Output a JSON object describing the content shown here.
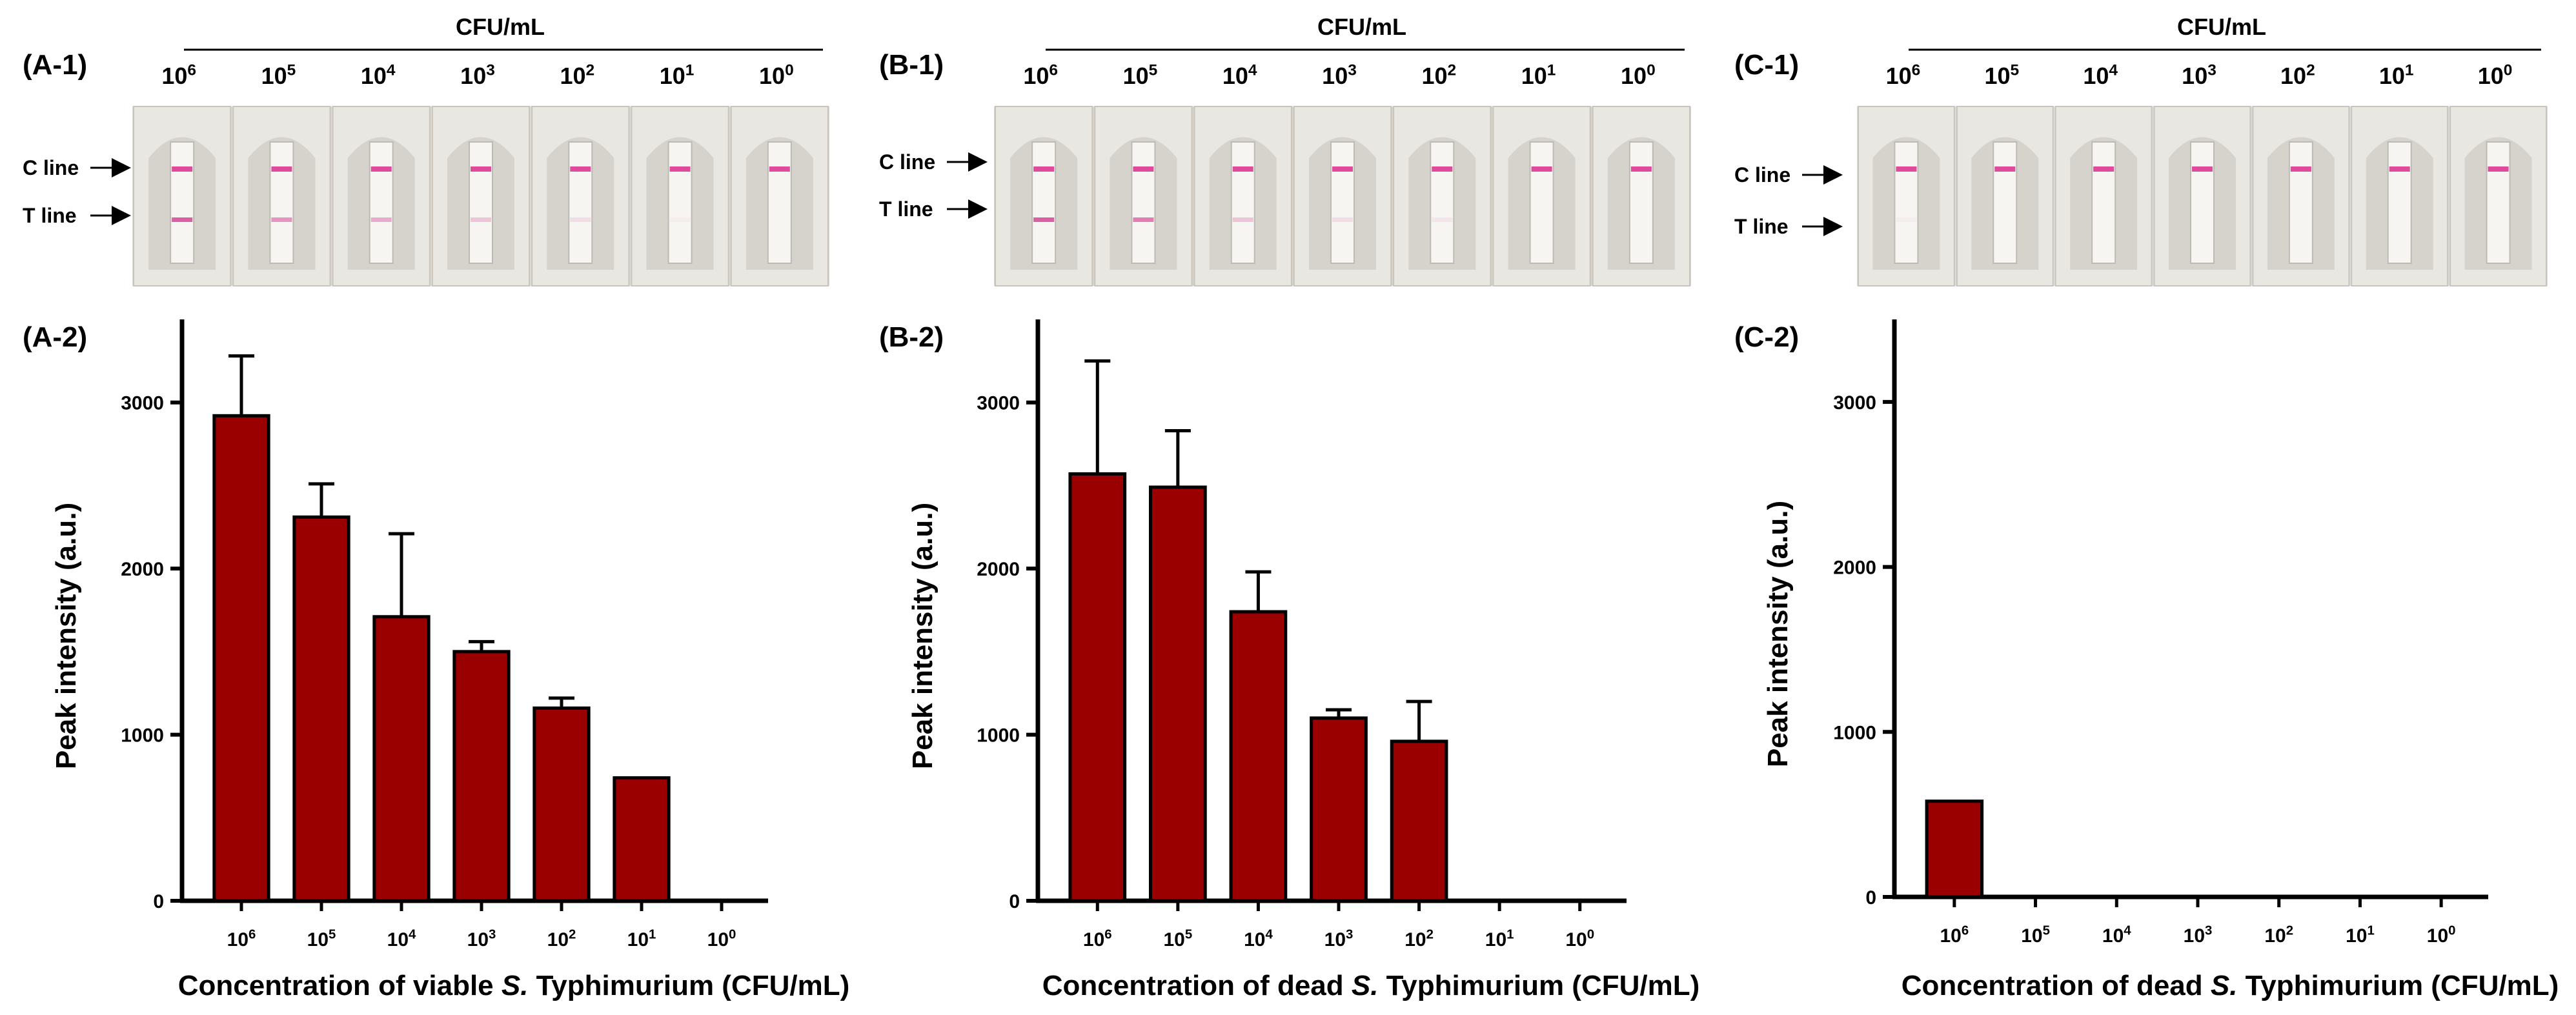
{
  "colors": {
    "bar": "#9b0000",
    "photo_bg_a": "#dedad4",
    "photo_bg_b": "#d8d4cc",
    "photo_bg_c": "#d9dcdd",
    "control_line": "#e04a9c",
    "test_line": "#d8569e"
  },
  "strip_photos": [
    {
      "panel_label": "(A-1)",
      "header": "CFU/mL",
      "concentrations": [
        {
          "base": "10",
          "exp": "6"
        },
        {
          "base": "10",
          "exp": "5"
        },
        {
          "base": "10",
          "exp": "4"
        },
        {
          "base": "10",
          "exp": "3"
        },
        {
          "base": "10",
          "exp": "2"
        },
        {
          "base": "10",
          "exp": "1"
        },
        {
          "base": "10",
          "exp": "0"
        }
      ],
      "c_line_label": "C line",
      "t_line_label": "T line",
      "test_line_intensity": [
        0.95,
        0.6,
        0.45,
        0.3,
        0.15,
        0.05,
        0.0
      ]
    },
    {
      "panel_label": "(B-1)",
      "header": "CFU/mL",
      "concentrations": [
        {
          "base": "10",
          "exp": "6"
        },
        {
          "base": "10",
          "exp": "5"
        },
        {
          "base": "10",
          "exp": "4"
        },
        {
          "base": "10",
          "exp": "3"
        },
        {
          "base": "10",
          "exp": "2"
        },
        {
          "base": "10",
          "exp": "1"
        },
        {
          "base": "10",
          "exp": "0"
        }
      ],
      "c_line_label": "C line",
      "t_line_label": "T line",
      "test_line_intensity": [
        0.95,
        0.75,
        0.3,
        0.15,
        0.1,
        0.0,
        0.0
      ]
    },
    {
      "panel_label": "(C-1)",
      "header": "CFU/mL",
      "concentrations": [
        {
          "base": "10",
          "exp": "6"
        },
        {
          "base": "10",
          "exp": "5"
        },
        {
          "base": "10",
          "exp": "4"
        },
        {
          "base": "10",
          "exp": "3"
        },
        {
          "base": "10",
          "exp": "2"
        },
        {
          "base": "10",
          "exp": "1"
        },
        {
          "base": "10",
          "exp": "0"
        }
      ],
      "c_line_label": "C line",
      "t_line_label": "T line",
      "test_line_intensity": [
        0.05,
        0.0,
        0.0,
        0.0,
        0.0,
        0.0,
        0.0
      ]
    }
  ],
  "chart_data": [
    {
      "type": "bar",
      "panel_label": "(A-2)",
      "categories": [
        {
          "base": "10",
          "exp": "6"
        },
        {
          "base": "10",
          "exp": "5"
        },
        {
          "base": "10",
          "exp": "4"
        },
        {
          "base": "10",
          "exp": "3"
        },
        {
          "base": "10",
          "exp": "2"
        },
        {
          "base": "10",
          "exp": "1"
        },
        {
          "base": "10",
          "exp": "0"
        }
      ],
      "values": [
        2920,
        2310,
        1710,
        1500,
        1160,
        740,
        0
      ],
      "errors": [
        360,
        200,
        500,
        60,
        60,
        0,
        0
      ],
      "ylabel": "Peak intensity (a.u.)",
      "xlabel": {
        "before": "Concentration of viable ",
        "italic": "S.",
        "after": " Typhimurium (CFU/mL)"
      },
      "ylim": [
        0,
        3500
      ],
      "yticks": [
        0,
        1000,
        2000,
        3000
      ]
    },
    {
      "type": "bar",
      "panel_label": "(B-2)",
      "categories": [
        {
          "base": "10",
          "exp": "6"
        },
        {
          "base": "10",
          "exp": "5"
        },
        {
          "base": "10",
          "exp": "4"
        },
        {
          "base": "10",
          "exp": "3"
        },
        {
          "base": "10",
          "exp": "2"
        },
        {
          "base": "10",
          "exp": "1"
        },
        {
          "base": "10",
          "exp": "0"
        }
      ],
      "values": [
        2570,
        2490,
        1740,
        1100,
        960,
        0,
        0
      ],
      "errors": [
        680,
        340,
        240,
        50,
        240,
        0,
        0
      ],
      "ylabel": "Peak intensity (a.u.)",
      "xlabel": {
        "before": "Concentration of dead ",
        "italic": "S.",
        "after": " Typhimurium (CFU/mL)"
      },
      "ylim": [
        0,
        3500
      ],
      "yticks": [
        0,
        1000,
        2000,
        3000
      ]
    },
    {
      "type": "bar",
      "panel_label": "(C-2)",
      "categories": [
        {
          "base": "10",
          "exp": "6"
        },
        {
          "base": "10",
          "exp": "5"
        },
        {
          "base": "10",
          "exp": "4"
        },
        {
          "base": "10",
          "exp": "3"
        },
        {
          "base": "10",
          "exp": "2"
        },
        {
          "base": "10",
          "exp": "1"
        },
        {
          "base": "10",
          "exp": "0"
        }
      ],
      "values": [
        580,
        0,
        0,
        0,
        0,
        0,
        0
      ],
      "errors": [
        0,
        0,
        0,
        0,
        0,
        0,
        0
      ],
      "ylabel": "Peak intensity  (a.u.)",
      "xlabel": {
        "before": "Concentration of dead ",
        "italic": "S.",
        "after": " Typhimurium (CFU/mL)"
      },
      "ylim": [
        0,
        3500
      ],
      "yticks": [
        0,
        1000,
        2000,
        3000
      ]
    }
  ]
}
